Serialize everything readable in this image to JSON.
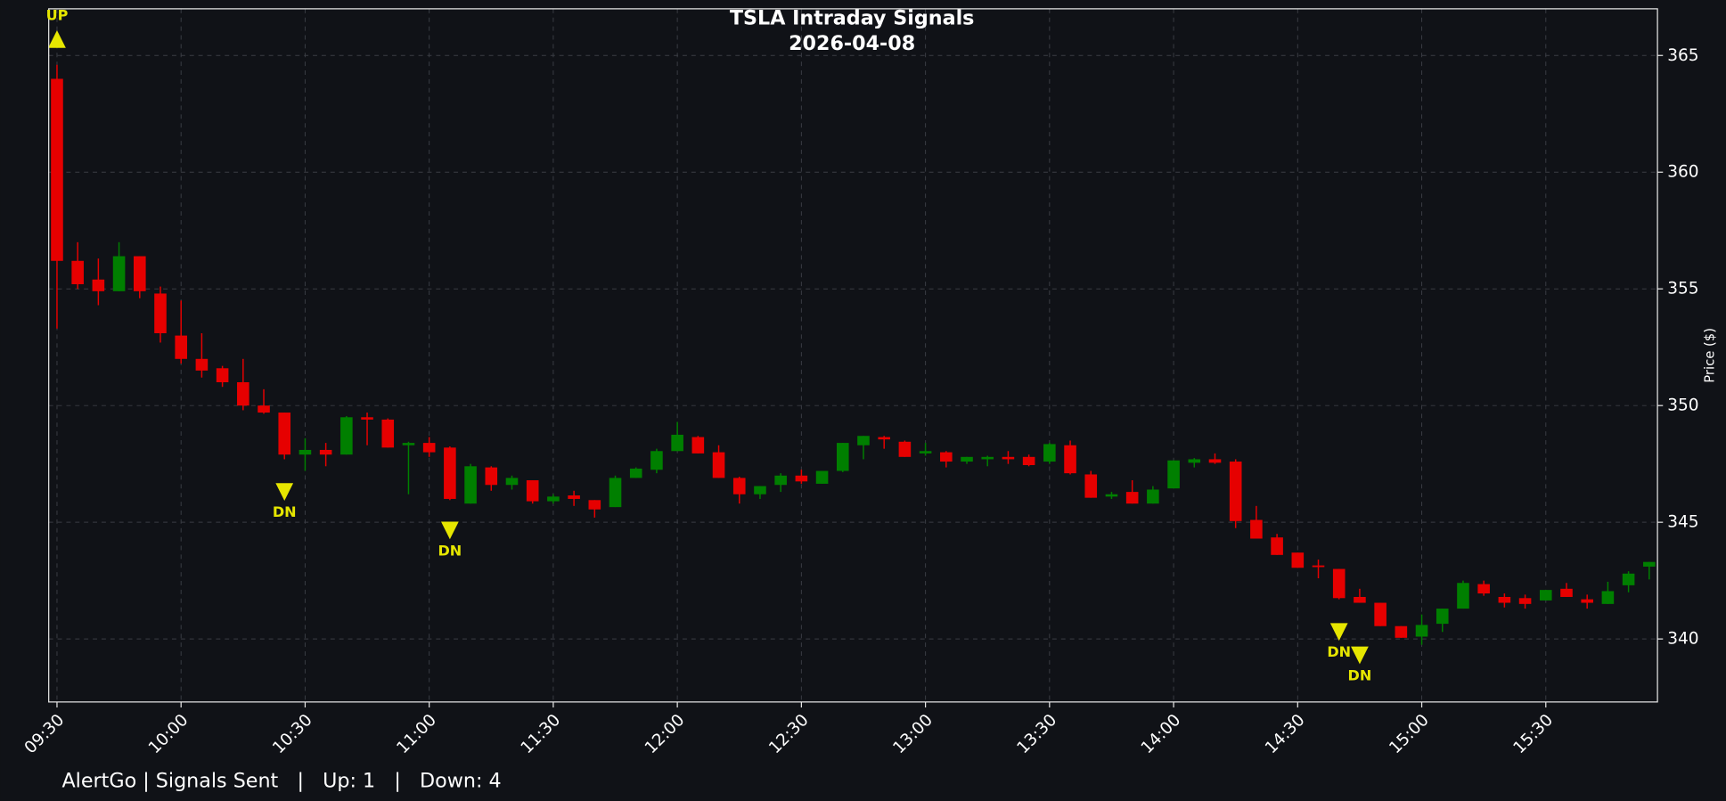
{
  "chart_data": {
    "type": "candlestick",
    "title": "TSLA Intraday Signals",
    "subtitle": "2026-04-08",
    "ylabel": "Price ($)",
    "x": [
      "09:30",
      "09:35",
      "09:40",
      "09:45",
      "09:50",
      "09:55",
      "10:00",
      "10:05",
      "10:10",
      "10:15",
      "10:20",
      "10:25",
      "10:30",
      "10:35",
      "10:40",
      "10:45",
      "10:50",
      "10:55",
      "11:00",
      "11:05",
      "11:10",
      "11:15",
      "11:20",
      "11:25",
      "11:30",
      "11:35",
      "11:40",
      "11:45",
      "11:50",
      "11:55",
      "12:00",
      "12:05",
      "12:10",
      "12:15",
      "12:20",
      "12:25",
      "12:30",
      "12:35",
      "12:40",
      "12:45",
      "12:50",
      "12:55",
      "13:00",
      "13:05",
      "13:10",
      "13:15",
      "13:20",
      "13:25",
      "13:30",
      "13:35",
      "13:40",
      "13:45",
      "13:50",
      "13:55",
      "14:00",
      "14:05",
      "14:10",
      "14:15",
      "14:20",
      "14:25",
      "14:30",
      "14:35",
      "14:40",
      "14:45",
      "14:50",
      "14:55",
      "15:00",
      "15:05",
      "15:10",
      "15:15",
      "15:20",
      "15:25",
      "15:30",
      "15:35",
      "15:40",
      "15:45",
      "15:50",
      "15:55"
    ],
    "open": [
      364.0,
      356.2,
      355.4,
      354.9,
      356.4,
      354.8,
      353.0,
      352.0,
      351.6,
      351.0,
      350.0,
      349.7,
      347.9,
      348.1,
      347.9,
      349.5,
      349.4,
      348.3,
      348.4,
      348.2,
      345.8,
      347.35,
      346.6,
      346.8,
      345.9,
      346.15,
      345.95,
      345.65,
      346.9,
      347.25,
      348.05,
      348.65,
      348.0,
      346.9,
      346.2,
      346.6,
      347.0,
      346.65,
      347.2,
      348.3,
      348.65,
      348.45,
      347.95,
      348.0,
      347.6,
      347.7,
      347.8,
      347.8,
      347.6,
      348.3,
      347.05,
      346.1,
      346.3,
      345.8,
      346.45,
      347.55,
      347.7,
      347.6,
      345.1,
      344.35,
      343.7,
      343.15,
      343.0,
      341.8,
      341.55,
      340.55,
      340.1,
      340.65,
      341.3,
      342.35,
      341.8,
      341.75,
      341.65,
      342.15,
      341.7,
      341.5,
      342.3,
      343.1
    ],
    "high": [
      364.6,
      357.0,
      356.3,
      357.0,
      356.4,
      355.1,
      354.5,
      353.1,
      351.7,
      352.0,
      350.7,
      349.7,
      348.6,
      348.4,
      349.55,
      349.7,
      349.45,
      348.45,
      348.65,
      348.25,
      347.5,
      347.4,
      347.0,
      346.8,
      346.2,
      346.35,
      345.95,
      347.0,
      347.35,
      348.15,
      349.3,
      348.7,
      348.3,
      346.95,
      346.55,
      347.1,
      347.25,
      347.2,
      348.4,
      348.7,
      348.7,
      348.5,
      348.4,
      348.05,
      347.8,
      347.85,
      348.05,
      347.9,
      348.4,
      348.5,
      347.2,
      346.3,
      346.8,
      346.55,
      347.65,
      347.75,
      347.95,
      347.7,
      345.7,
      344.5,
      343.7,
      343.4,
      343.0,
      342.15,
      341.55,
      340.55,
      341.05,
      341.3,
      342.5,
      342.5,
      341.95,
      341.9,
      342.1,
      342.4,
      341.9,
      342.45,
      342.9,
      343.3
    ],
    "low": [
      353.3,
      355.0,
      354.3,
      354.9,
      354.6,
      352.7,
      351.8,
      351.2,
      350.8,
      349.8,
      349.65,
      347.7,
      347.2,
      347.4,
      347.9,
      348.3,
      348.2,
      346.2,
      347.8,
      345.95,
      345.8,
      346.35,
      346.4,
      345.8,
      345.8,
      345.7,
      345.2,
      345.65,
      346.9,
      347.1,
      348.05,
      347.95,
      346.9,
      345.8,
      346.0,
      346.3,
      346.65,
      346.65,
      347.15,
      347.7,
      348.15,
      347.8,
      347.85,
      347.35,
      347.5,
      347.4,
      347.5,
      347.4,
      347.5,
      347.05,
      346.05,
      346.0,
      345.8,
      345.8,
      346.45,
      347.35,
      347.5,
      344.75,
      344.3,
      343.6,
      343.05,
      342.6,
      341.7,
      341.55,
      340.55,
      340.05,
      339.75,
      340.3,
      341.3,
      341.85,
      341.35,
      341.3,
      341.65,
      341.8,
      341.3,
      341.5,
      342.0,
      342.55
    ],
    "close": [
      356.2,
      355.2,
      354.9,
      356.4,
      354.9,
      353.1,
      352.0,
      351.5,
      351.0,
      350.0,
      349.7,
      347.9,
      348.1,
      347.9,
      349.5,
      349.4,
      348.2,
      348.4,
      348.0,
      346.0,
      347.4,
      346.6,
      346.9,
      345.9,
      346.1,
      346.0,
      345.55,
      346.9,
      347.3,
      348.05,
      348.75,
      347.95,
      346.9,
      346.2,
      346.55,
      347.0,
      346.75,
      347.2,
      348.4,
      348.7,
      348.55,
      347.8,
      348.05,
      347.6,
      347.8,
      347.8,
      347.7,
      347.45,
      348.35,
      347.1,
      346.05,
      346.2,
      345.8,
      346.4,
      347.65,
      347.7,
      347.55,
      345.05,
      344.3,
      343.6,
      343.05,
      343.1,
      341.75,
      341.55,
      340.55,
      340.05,
      340.6,
      341.3,
      342.4,
      341.95,
      341.55,
      341.5,
      342.1,
      341.8,
      341.55,
      342.05,
      342.8,
      343.3
    ],
    "up_color": "#007f00",
    "down_color": "#e60000",
    "signal_color": "#e6e600",
    "signals": [
      {
        "x": "09:30",
        "y": 365.7,
        "label": "UP",
        "direction": "up"
      },
      {
        "x": "10:25",
        "y": 346.3,
        "label": "DN",
        "direction": "down"
      },
      {
        "x": "11:05",
        "y": 344.65,
        "label": "DN",
        "direction": "down"
      },
      {
        "x": "14:40",
        "y": 340.3,
        "label": "DN",
        "direction": "down"
      },
      {
        "x": "14:45",
        "y": 339.3,
        "label": "DN",
        "direction": "down"
      }
    ],
    "xlim": [
      "09:28",
      "15:57"
    ],
    "xticks": [
      "09:30",
      "10:00",
      "10:30",
      "11:00",
      "11:30",
      "12:00",
      "12:30",
      "13:00",
      "13:30",
      "14:00",
      "14:30",
      "15:00",
      "15:30"
    ],
    "ylim": [
      337.3,
      367
    ],
    "yticks": [
      340,
      345,
      350,
      355,
      360,
      365
    ],
    "grid": true
  },
  "footer": {
    "text": "AlertGo | Signals Sent   |   Up: 1   |   Down: 4"
  }
}
